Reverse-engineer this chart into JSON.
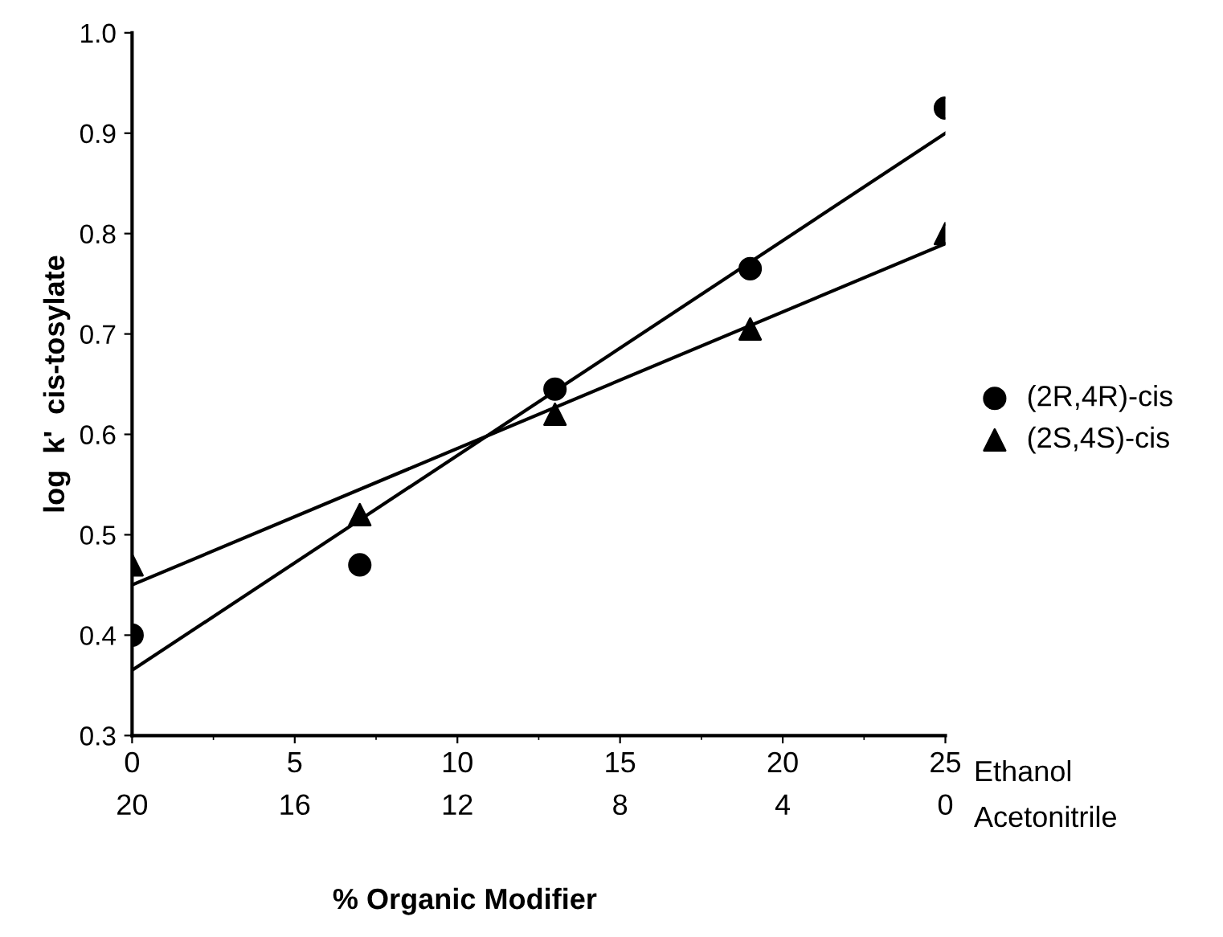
{
  "chart_data": {
    "type": "scatter",
    "ylabel": "log  k'  cis-tosylate",
    "xlabel": "Ethanol",
    "x2label": "Acetonitrile",
    "annotations": [
      "% Organic Modifier"
    ],
    "xlim": [
      0,
      25
    ],
    "xticks": [
      0,
      5,
      10,
      15,
      20,
      25
    ],
    "x2lim": [
      20,
      0
    ],
    "x2ticks": [
      20,
      16,
      12,
      8,
      4,
      0
    ],
    "ylim": [
      0.3,
      1.0
    ],
    "yticks": [
      {
        "value": 0.3,
        "label": "0.3"
      },
      {
        "value": 0.4,
        "label": "0.4"
      },
      {
        "value": 0.5,
        "label": "0.5"
      },
      {
        "value": 0.6,
        "label": "0.6"
      },
      {
        "value": 0.7,
        "label": "0.7"
      },
      {
        "value": 0.8,
        "label": "0.8"
      },
      {
        "value": 0.9,
        "label": "0.9"
      },
      {
        "value": 1.0,
        "label": "1.0"
      }
    ],
    "grid": false,
    "legend": "right",
    "series": [
      {
        "name": "(2R,4R)-cis",
        "color": "#000000",
        "marker": "circle",
        "x": [
          0,
          7,
          13,
          19,
          25
        ],
        "values": [
          0.4,
          0.47,
          0.645,
          0.765,
          0.925
        ]
      },
      {
        "name": "(2S,4S)-cis",
        "color": "#000000",
        "marker": "triangle",
        "x": [
          0,
          7,
          13,
          19,
          25
        ],
        "values": [
          0.47,
          0.52,
          0.62,
          0.705,
          0.8
        ]
      },
      {
        "type": "line",
        "color": "#000000",
        "marker": "none",
        "line_style": "solid",
        "x": [
          0,
          25
        ],
        "values": [
          0.365,
          0.9
        ]
      },
      {
        "type": "line",
        "color": "#000000",
        "marker": "none",
        "line_style": "solid",
        "x": [
          0,
          25
        ],
        "values": [
          0.45,
          0.79
        ]
      }
    ]
  }
}
